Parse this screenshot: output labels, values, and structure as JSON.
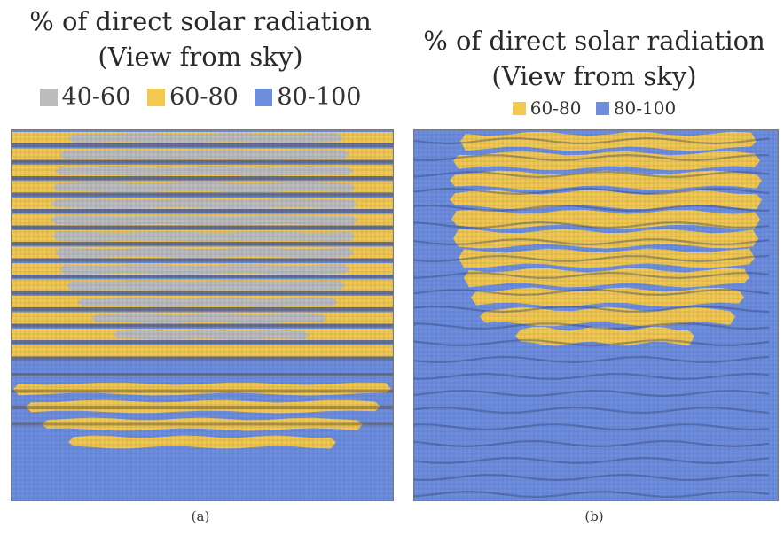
{
  "colors": {
    "range_40_60": "#bcbcbc",
    "range_60_80": "#f2c84e",
    "range_80_100": "#6d8ddf",
    "background": "#ffffff"
  },
  "panels": [
    {
      "title_line1": "% of direct solar radiation",
      "title_line2": "(View from sky)",
      "legend": [
        {
          "label": "40-60",
          "color": "#bcbcbc"
        },
        {
          "label": "60-80",
          "color": "#f2c84e"
        },
        {
          "label": "80-100",
          "color": "#6d8ddf"
        }
      ],
      "sublabel": "(a)"
    },
    {
      "title_line1": "% of direct solar radiation",
      "title_line2": "(View from sky)",
      "legend": [
        {
          "label": "60-80",
          "color": "#f2c84e"
        },
        {
          "label": "80-100",
          "color": "#6d8ddf"
        }
      ],
      "sublabel": "(b)"
    }
  ]
}
